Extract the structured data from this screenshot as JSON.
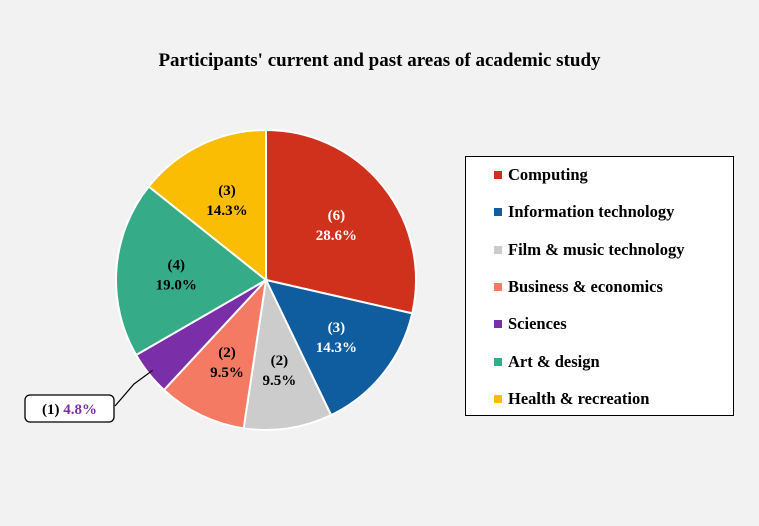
{
  "chart_data": {
    "type": "pie",
    "title": "Participants' current and past areas of academic study",
    "slices": [
      {
        "label": "Computing",
        "count": 6,
        "percent": 28.6,
        "count_text": "(6)",
        "percent_text": "28.6%",
        "color": "#d0311d",
        "text_color": "#ffffff"
      },
      {
        "label": "Information technology",
        "count": 3,
        "percent": 14.3,
        "count_text": "(3)",
        "percent_text": "14.3%",
        "color": "#0f5c9e",
        "text_color": "#ffffff"
      },
      {
        "label": "Film & music technology",
        "count": 2,
        "percent": 9.5,
        "count_text": "(2)",
        "percent_text": "9.5%",
        "color": "#cccccc",
        "text_color": "#000000"
      },
      {
        "label": "Business & economics",
        "count": 2,
        "percent": 9.5,
        "count_text": "(2)",
        "percent_text": "9.5%",
        "color": "#f57a63",
        "text_color": "#000000"
      },
      {
        "label": "Sciences",
        "count": 1,
        "percent": 4.8,
        "count_text": "(1)",
        "percent_text": "4.8%",
        "color": "#7a2fa8",
        "text_color": "#7a2fa8"
      },
      {
        "label": "Art & design",
        "count": 4,
        "percent": 19.0,
        "count_text": "(4)",
        "percent_text": "19.0%",
        "color": "#35ab88",
        "text_color": "#000000"
      },
      {
        "label": "Health & recreation",
        "count": 3,
        "percent": 14.3,
        "count_text": "(3)",
        "percent_text": "14.3%",
        "color": "#fbbc04",
        "text_color": "#000000"
      }
    ],
    "legend_position": "right",
    "callout_slice": "Sciences"
  }
}
